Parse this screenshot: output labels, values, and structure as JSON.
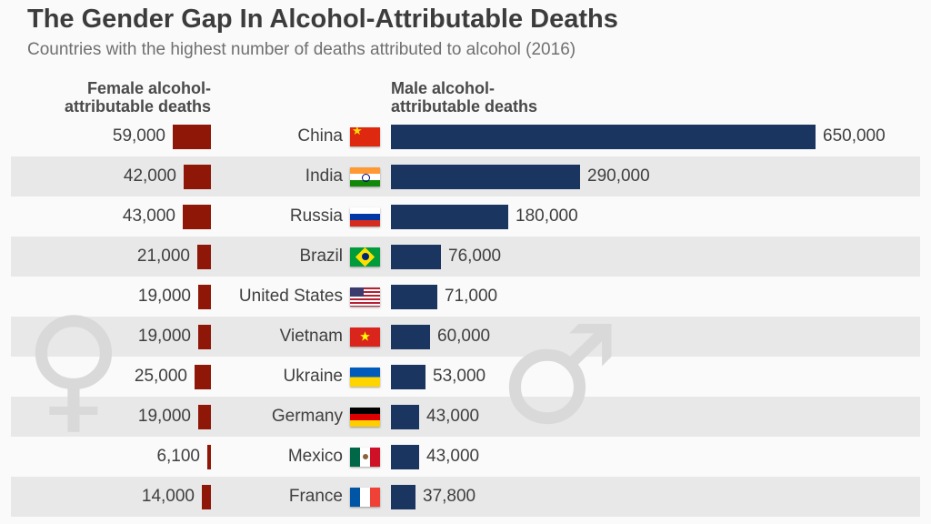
{
  "header": {
    "title": "The Gender Gap In Alcohol-Attributable Deaths",
    "subtitle": "Countries with the highest number of deaths attributed to alcohol (2016)"
  },
  "column_headers": {
    "female_line1": "Female alcohol-",
    "female_line2": "attributable deaths",
    "male_line1": "Male alcohol-",
    "male_line2": "attributable deaths"
  },
  "watermarks": {
    "female_symbol": "♀",
    "male_symbol": "♂"
  },
  "colors": {
    "female_bar": "#8e1708",
    "male_bar": "#1a3560",
    "row_stripe": "#e8e8e8",
    "background": "#fafafa",
    "title_text": "#3c3c3c",
    "subtitle_text": "#707070",
    "label_text": "#3f3f3f",
    "watermark": "#d9d9d9"
  },
  "chart_data": {
    "type": "bar",
    "title": "The Gender Gap In Alcohol-Attributable Deaths",
    "subtitle": "Countries with the highest number of deaths attributed to alcohol (2016)",
    "orientation": "horizontal",
    "legend_position": "column-headers",
    "grid": false,
    "categories": [
      "China",
      "India",
      "Russia",
      "Brazil",
      "United States",
      "Vietnam",
      "Ukraine",
      "Germany",
      "Mexico",
      "France"
    ],
    "series": [
      {
        "name": "Female alcohol-attributable deaths",
        "values": [
          59000,
          42000,
          43000,
          21000,
          19000,
          19000,
          25000,
          19000,
          6100,
          14000
        ]
      },
      {
        "name": "Male alcohol-attributable deaths",
        "values": [
          650000,
          290000,
          180000,
          76000,
          71000,
          60000,
          53000,
          43000,
          43000,
          37800
        ]
      }
    ],
    "value_axis_max": 650000,
    "rows": [
      {
        "country": "China",
        "flag": "cn",
        "female": 59000,
        "female_label": "59,000",
        "male": 650000,
        "male_label": "650,000"
      },
      {
        "country": "India",
        "flag": "in",
        "female": 42000,
        "female_label": "42,000",
        "male": 290000,
        "male_label": "290,000"
      },
      {
        "country": "Russia",
        "flag": "ru",
        "female": 43000,
        "female_label": "43,000",
        "male": 180000,
        "male_label": "180,000"
      },
      {
        "country": "Brazil",
        "flag": "br",
        "female": 21000,
        "female_label": "21,000",
        "male": 76000,
        "male_label": "76,000"
      },
      {
        "country": "United States",
        "flag": "us",
        "female": 19000,
        "female_label": "19,000",
        "male": 71000,
        "male_label": "71,000"
      },
      {
        "country": "Vietnam",
        "flag": "vn",
        "female": 19000,
        "female_label": "19,000",
        "male": 60000,
        "male_label": "60,000"
      },
      {
        "country": "Ukraine",
        "flag": "ua",
        "female": 25000,
        "female_label": "25,000",
        "male": 53000,
        "male_label": "53,000"
      },
      {
        "country": "Germany",
        "flag": "de",
        "female": 19000,
        "female_label": "19,000",
        "male": 43000,
        "male_label": "43,000"
      },
      {
        "country": "Mexico",
        "flag": "mx",
        "female": 6100,
        "female_label": "6,100",
        "male": 43000,
        "male_label": "43,000"
      },
      {
        "country": "France",
        "flag": "fr",
        "female": 14000,
        "female_label": "14,000",
        "male": 37800,
        "male_label": "37,800"
      }
    ]
  }
}
